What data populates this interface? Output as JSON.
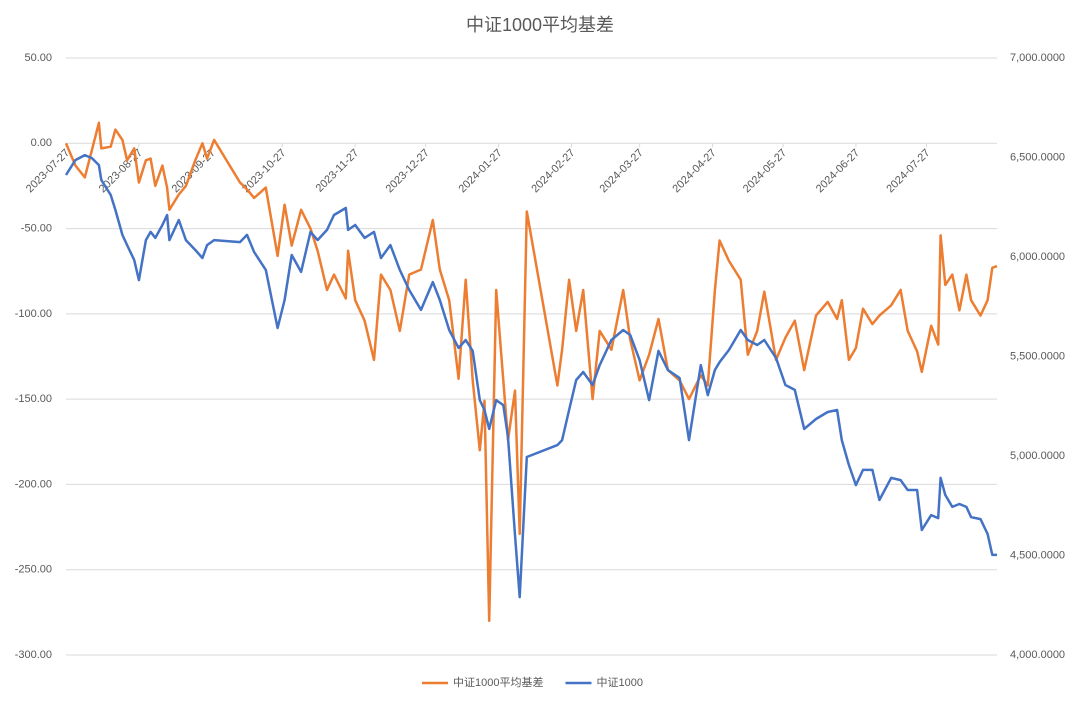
{
  "chart_data": {
    "type": "line",
    "title": "中证1000平均基差",
    "x": [
      "2023-07-27",
      "2023-07-31",
      "2023-08-04",
      "2023-08-07",
      "2023-08-10",
      "2023-08-11",
      "2023-08-15",
      "2023-08-17",
      "2023-08-20",
      "2023-08-22",
      "2023-08-25",
      "2023-08-27",
      "2023-08-30",
      "2023-09-01",
      "2023-09-03",
      "2023-09-06",
      "2023-09-08",
      "2023-09-09",
      "2023-09-13",
      "2023-09-16",
      "2023-09-20",
      "2023-09-23",
      "2023-09-25",
      "2023-09-28",
      "2023-10-09",
      "2023-10-12",
      "2023-10-15",
      "2023-10-20",
      "2023-10-25",
      "2023-10-28",
      "2023-10-31",
      "2023-11-04",
      "2023-11-08",
      "2023-11-11",
      "2023-11-15",
      "2023-11-18",
      "2023-11-23",
      "2023-11-24",
      "2023-11-27",
      "2023-12-01",
      "2023-12-05",
      "2023-12-08",
      "2023-12-12",
      "2023-12-16",
      "2023-12-20",
      "2023-12-25",
      "2023-12-30",
      "2024-01-02",
      "2024-01-06",
      "2024-01-10",
      "2024-01-13",
      "2024-01-16",
      "2024-01-19",
      "2024-01-21",
      "2024-01-23",
      "2024-01-26",
      "2024-01-29",
      "2024-01-31",
      "2024-02-03",
      "2024-02-05",
      "2024-02-08",
      "2024-02-21",
      "2024-02-23",
      "2024-02-26",
      "2024-02-29",
      "2024-03-03",
      "2024-03-07",
      "2024-03-10",
      "2024-03-15",
      "2024-03-20",
      "2024-03-23",
      "2024-03-27",
      "2024-03-31",
      "2024-04-04",
      "2024-04-08",
      "2024-04-13",
      "2024-04-17",
      "2024-04-22",
      "2024-04-25",
      "2024-04-28",
      "2024-04-30",
      "2024-05-04",
      "2024-05-09",
      "2024-05-12",
      "2024-05-16",
      "2024-05-19",
      "2024-05-24",
      "2024-05-28",
      "2024-06-01",
      "2024-06-05",
      "2024-06-10",
      "2024-06-15",
      "2024-06-19",
      "2024-06-21",
      "2024-06-24",
      "2024-06-27",
      "2024-06-30",
      "2024-07-04",
      "2024-07-07",
      "2024-07-12",
      "2024-07-16",
      "2024-07-19",
      "2024-07-23",
      "2024-07-25",
      "2024-07-29",
      "2024-08-01",
      "2024-08-02",
      "2024-08-04",
      "2024-08-07",
      "2024-08-10",
      "2024-08-13",
      "2024-08-15",
      "2024-08-19",
      "2024-08-22",
      "2024-08-24",
      "2024-08-26"
    ],
    "series": [
      {
        "name": "中证1000平均基差",
        "color": "#ED7D31",
        "values": [
          0,
          -13,
          -20,
          -4,
          12,
          -3,
          -2,
          8,
          2,
          -10,
          -3,
          -23,
          -10,
          -9,
          -25,
          -13,
          -26,
          -39,
          -30,
          -25,
          -10,
          0,
          -9,
          2,
          -23,
          -27,
          -32,
          -26,
          -66,
          -36,
          -60,
          -39,
          -50,
          -63,
          -86,
          -77,
          -91,
          -63,
          -92,
          -104,
          -127,
          -77,
          -86,
          -110,
          -77,
          -74,
          -45,
          -74,
          -92,
          -138,
          -80,
          -139,
          -180,
          -151,
          -280,
          -86,
          -139,
          -174,
          -145,
          -229,
          -40,
          -142,
          -121,
          -80,
          -110,
          -86,
          -150,
          -110,
          -121,
          -86,
          -115,
          -139,
          -124,
          -103,
          -133,
          -139,
          -150,
          -136,
          -142,
          -86,
          -57,
          -69,
          -80,
          -124,
          -110,
          -87,
          -127,
          -114,
          -104,
          -133,
          -101,
          -93,
          -103,
          -92,
          -127,
          -120,
          -97,
          -106,
          -101,
          -95,
          -86,
          -110,
          -122,
          -134,
          -107,
          -118,
          -54,
          -83,
          -77,
          -98,
          -77,
          -92,
          -101,
          -92,
          -73,
          -72
        ]
      },
      {
        "name": "中证1000",
        "color": "#4472C4",
        "axis": "y2",
        "values": [
          6412,
          6487,
          6512,
          6497,
          6462,
          6387,
          6312,
          6236,
          6111,
          6060,
          5985,
          5884,
          6085,
          6126,
          6096,
          6161,
          6211,
          6085,
          6186,
          6085,
          6035,
          5995,
          6060,
          6085,
          6075,
          6111,
          6025,
          5935,
          5643,
          5784,
          6010,
          5925,
          6126,
          6085,
          6136,
          6211,
          6246,
          6136,
          6161,
          6096,
          6126,
          5995,
          6060,
          5935,
          5834,
          5734,
          5874,
          5784,
          5633,
          5543,
          5583,
          5528,
          5281,
          5231,
          5136,
          5281,
          5256,
          5095,
          4603,
          4291,
          4995,
          5055,
          5080,
          5231,
          5382,
          5422,
          5357,
          5457,
          5583,
          5633,
          5608,
          5482,
          5281,
          5528,
          5432,
          5392,
          5080,
          5457,
          5306,
          5432,
          5472,
          5533,
          5633,
          5583,
          5558,
          5583,
          5493,
          5357,
          5332,
          5136,
          5186,
          5221,
          5231,
          5080,
          4955,
          4854,
          4930,
          4930,
          4779,
          4890,
          4879,
          4829,
          4829,
          4628,
          4703,
          4688,
          4890,
          4804,
          4744,
          4759,
          4744,
          4693,
          4683,
          4608,
          4503,
          4503
        ]
      }
    ],
    "xlim": [
      "2023-07-27",
      "2024-08-26"
    ],
    "xticks": [
      "2023-07-27",
      "2023-08-27",
      "2023-09-27",
      "2023-10-27",
      "2023-11-27",
      "2023-12-27",
      "2024-01-27",
      "2024-02-27",
      "2024-03-27",
      "2024-04-27",
      "2024-05-27",
      "2024-06-27",
      "2024-07-27"
    ],
    "ylim": [
      -300,
      50
    ],
    "yticks": [
      {
        "value": -300,
        "label": "-300.00"
      },
      {
        "value": -250,
        "label": "-250.00"
      },
      {
        "value": -200,
        "label": "-200.00"
      },
      {
        "value": -150,
        "label": "-150.00"
      },
      {
        "value": -100,
        "label": "-100.00"
      },
      {
        "value": -50,
        "label": "-50.00"
      },
      {
        "value": 0,
        "label": "0.00"
      },
      {
        "value": 50,
        "label": "50.00"
      }
    ],
    "y2lim": [
      4000,
      7000
    ],
    "y2ticks": [
      {
        "value": 4000,
        "label": "4,000.0000"
      },
      {
        "value": 4500,
        "label": "4,500.0000"
      },
      {
        "value": 5000,
        "label": "5,000.0000"
      },
      {
        "value": 5500,
        "label": "5,500.0000"
      },
      {
        "value": 6000,
        "label": "6,000.0000"
      },
      {
        "value": 6500,
        "label": "6,500.0000"
      },
      {
        "value": 7000,
        "label": "7,000.0000"
      }
    ],
    "grid": true,
    "legend": "bottom"
  }
}
